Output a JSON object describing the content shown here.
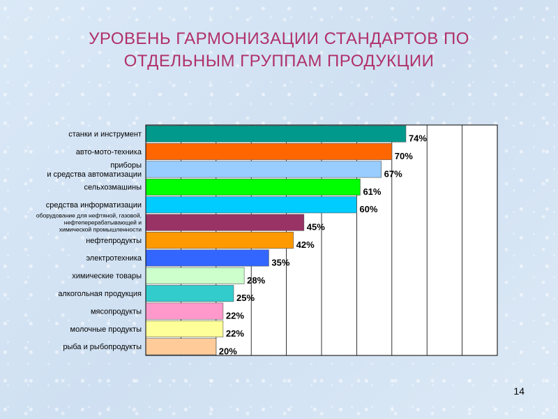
{
  "slide": {
    "title_line1": "УРОВЕНЬ ГАРМОНИЗАЦИИ СТАНДАРТОВ ПО",
    "title_line2": "ОТДЕЛЬНЫМ ГРУППАМ ПРОДУКЦИИ",
    "page_number": "14"
  },
  "chart_data": {
    "type": "bar",
    "orientation": "horizontal",
    "title": "",
    "xlabel": "",
    "ylabel": "",
    "xlim": [
      0,
      100
    ],
    "grid": true,
    "legend": "none",
    "value_format": "percent",
    "categories": [
      [
        "станки и инструмент"
      ],
      [
        "авто-мото-техника"
      ],
      [
        "приборы",
        "и средства автоматизации"
      ],
      [
        "сельхозмашины"
      ],
      [
        "средства информатизации"
      ],
      [
        "оборудование для нефтяной, газовой,",
        "нефтеперерабатывающей и",
        "химической промышленности"
      ],
      [
        "нефтепродукты"
      ],
      [
        "электротехника"
      ],
      [
        "химические товары"
      ],
      [
        "алкогольная продукция"
      ],
      [
        "мясопродукты"
      ],
      [
        "молочные продукты"
      ],
      [
        "рыба и рыбопродукты"
      ]
    ],
    "values": [
      74,
      70,
      67,
      61,
      60,
      45,
      42,
      35,
      28,
      25,
      22,
      22,
      20
    ],
    "value_labels": [
      "74%",
      "70%",
      "67%",
      "61%",
      "60%",
      "45%",
      "42%",
      "35%",
      "28%",
      "25%",
      "22%",
      "22%",
      "20%"
    ],
    "colors": [
      "#00998c",
      "#ff6600",
      "#99ccff",
      "#00ff00",
      "#00ccff",
      "#993366",
      "#ff9900",
      "#3366ff",
      "#ccffcc",
      "#33cccc",
      "#ff99cc",
      "#ffff99",
      "#ffcc99"
    ]
  }
}
